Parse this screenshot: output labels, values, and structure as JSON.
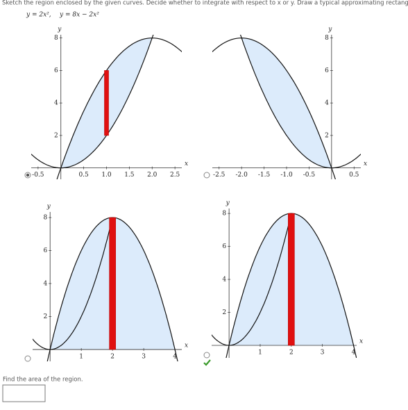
{
  "header": {
    "instruction": "Sketch the region enclosed by the given curves. Decide whether to integrate with respect to x or y. Draw a typical approximating rectangle.",
    "equations": [
      "y = 2x²,",
      "y = 8x − 2x²"
    ]
  },
  "options": [
    {
      "selected": true,
      "correct": false,
      "x_label": "x",
      "y_label": "y",
      "xlim": [
        -0.65,
        2.65
      ],
      "ylim": [
        -0.7,
        8.2
      ],
      "xticks": [
        -0.5,
        0.5,
        {
          "value": 1,
          "label": "1.0"
        },
        1.5,
        {
          "value": 2,
          "label": "2.0"
        },
        2.5
      ],
      "yticks": [
        2,
        4,
        6,
        8
      ]
    },
    {
      "selected": false,
      "correct": false,
      "x_label": "x",
      "y_label": "y",
      "xlim": [
        -2.65,
        0.65
      ],
      "ylim": [
        -0.7,
        8.2
      ],
      "xticks": [
        -2.5,
        {
          "value": -2,
          "label": "-2.0"
        },
        -1.5,
        {
          "value": -1,
          "label": "-1.0"
        },
        -0.5,
        0.5
      ],
      "yticks": [
        2,
        4,
        6,
        8
      ]
    },
    {
      "selected": false,
      "correct": false,
      "x_label": "x",
      "y_label": "y",
      "xlim": [
        -0.56,
        4.22
      ],
      "ylim": [
        -0.72,
        8.34
      ],
      "xticks": [
        1,
        2,
        3,
        4
      ],
      "yticks": [
        2,
        4,
        6,
        8
      ]
    },
    {
      "selected": false,
      "correct": true,
      "x_label": "x",
      "y_label": "y",
      "xlim": [
        -0.56,
        4.1
      ],
      "ylim": [
        -0.76,
        8.3
      ],
      "xticks": [
        1,
        2,
        3,
        4
      ],
      "yticks": [
        2,
        4,
        6,
        8
      ]
    }
  ],
  "question": "Find the area of the region."
}
